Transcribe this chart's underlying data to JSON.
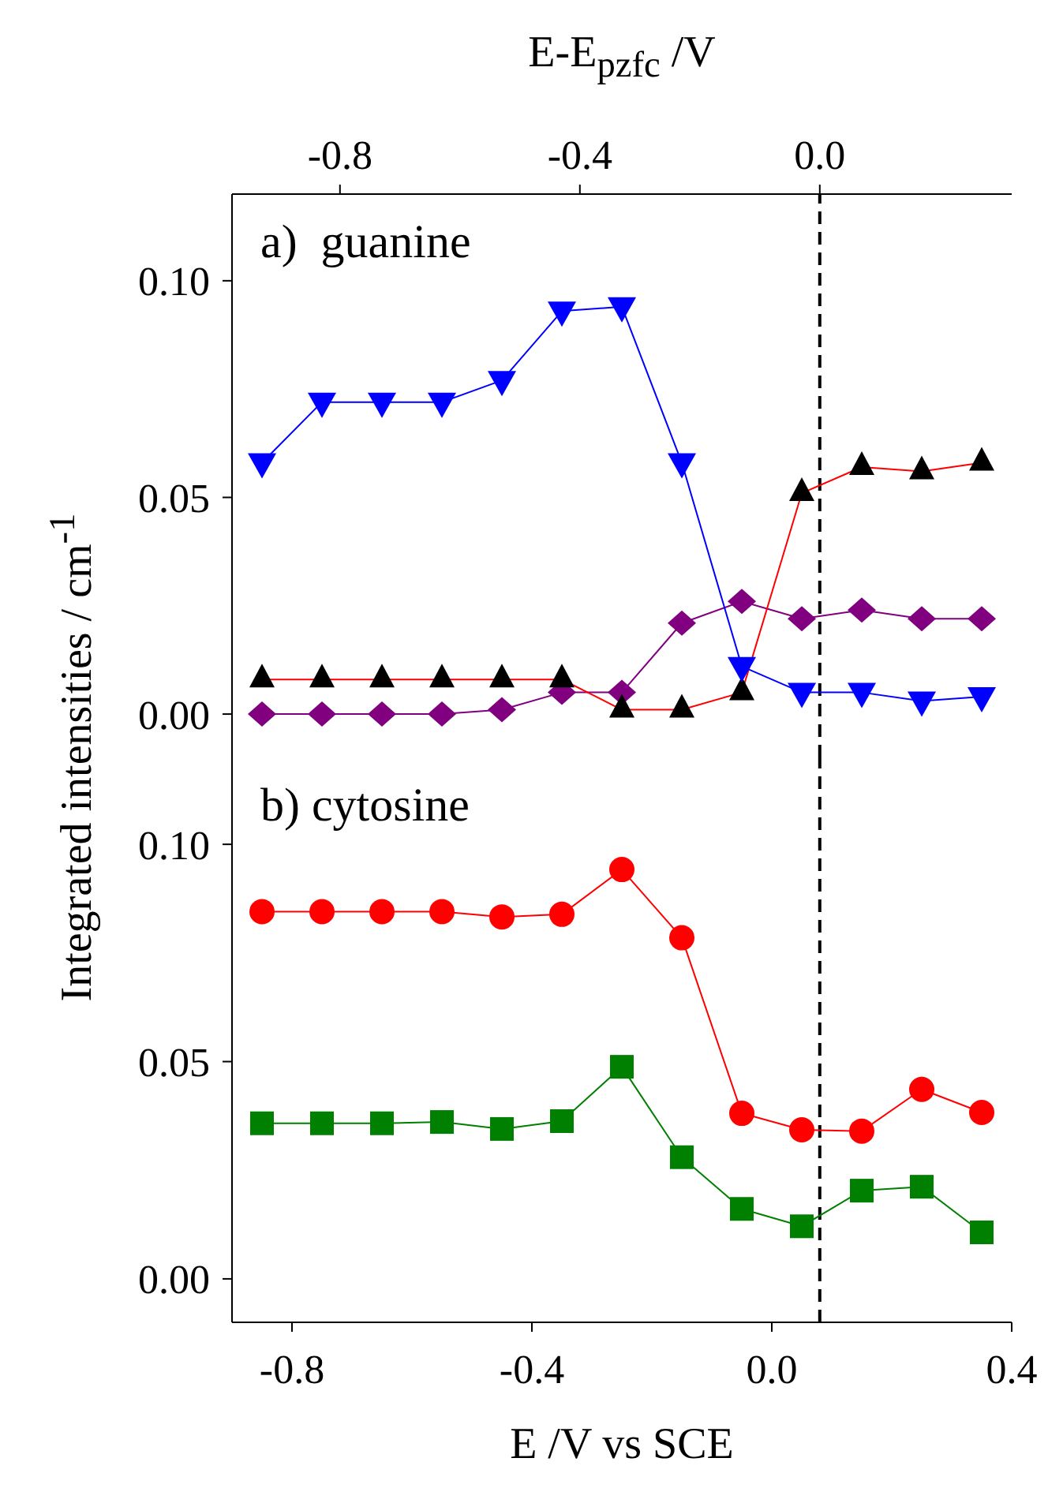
{
  "chart_data": [
    {
      "type": "line",
      "x": [
        -0.85,
        -0.75,
        -0.65,
        -0.55,
        -0.45,
        -0.35,
        -0.25,
        -0.15,
        -0.05,
        0.05,
        0.15,
        0.25,
        0.35
      ],
      "series": [
        {
          "color": "#800080",
          "marker": "diamond",
          "values": [
            0.0,
            0.0,
            0.0,
            0.0,
            0.001,
            0.005,
            0.005,
            0.021,
            0.026,
            0.022,
            0.024,
            0.022,
            0.022
          ]
        },
        {
          "color": "#ff0000",
          "colors": [
            "#000000",
            "#000000",
            "#000000",
            "#000000",
            "#000000",
            "#000000",
            "#000000",
            "#000000",
            "#000000",
            "#000000",
            "#000000",
            "#000000",
            "#000000"
          ],
          "marker": "triangle",
          "values": [
            0.008,
            0.008,
            0.008,
            0.008,
            0.008,
            0.008,
            0.001,
            0.001,
            0.005,
            0.051,
            0.057,
            0.056,
            0.058
          ]
        },
        {
          "color": "#0000ff",
          "marker": "triangle-down",
          "values": [
            0.058,
            0.072,
            0.072,
            0.072,
            0.077,
            0.093,
            0.094,
            0.058,
            0.011,
            0.005,
            0.005,
            0.003,
            0.004
          ]
        }
      ],
      "xlim": [
        -0.9,
        0.4
      ],
      "x2lim": [
        -0.98,
        0.32
      ],
      "x2ticks": [
        {
          "value": -0.8,
          "label": "-0.8"
        },
        {
          "value": -0.4,
          "label": "-0.4"
        },
        {
          "value": 0.0,
          "label": "0.0"
        }
      ],
      "x2label": "E-E$_{pzfc}$ /V",
      "ylim": [
        -0.01,
        0.12
      ],
      "yticks": [
        {
          "value": 0.0,
          "label": "0.00"
        },
        {
          "value": 0.05,
          "label": "0.05"
        },
        {
          "value": 0.1,
          "label": "0.10"
        }
      ],
      "ylabel": "Integrated intensities / cm$^{-1}$",
      "tick_labels": "y",
      "annotations": [
        "a)  guanine"
      ],
      "ref_lines": [
        {
          "axis": "x",
          "value": 0.08,
          "color": "#000000",
          "line_style": "dashed"
        }
      ]
    },
    {
      "type": "line",
      "x": [
        -0.85,
        -0.75,
        -0.65,
        -0.55,
        -0.45,
        -0.35,
        -0.25,
        -0.15,
        -0.05,
        0.05,
        0.15,
        0.25,
        0.35
      ],
      "series": [
        {
          "color": "#ff0000",
          "marker": "circle",
          "values": [
            0.0845,
            0.0845,
            0.0845,
            0.0845,
            0.0833,
            0.0839,
            0.0942,
            0.0785,
            0.0381,
            0.0343,
            0.034,
            0.0436,
            0.0383
          ]
        },
        {
          "color": "#008000",
          "marker": "square",
          "values": [
            0.0358,
            0.0358,
            0.0358,
            0.0361,
            0.0345,
            0.0363,
            0.0488,
            0.028,
            0.0161,
            0.0121,
            0.0203,
            0.0212,
            0.0107
          ]
        }
      ],
      "xlim": [
        -0.9,
        0.4
      ],
      "xticks": [
        {
          "value": -0.8,
          "label": "-0.8"
        },
        {
          "value": -0.4,
          "label": "-0.4"
        },
        {
          "value": 0.0,
          "label": "0.0"
        },
        {
          "value": 0.4,
          "label": "0.4"
        }
      ],
      "xlabel": "E /V vs SCE",
      "ylim": [
        -0.01,
        0.12
      ],
      "yticks": [
        {
          "value": 0.0,
          "label": "0.00"
        },
        {
          "value": 0.05,
          "label": "0.05"
        },
        {
          "value": 0.1,
          "label": "0.10"
        }
      ],
      "annotations": [
        "b) cytosine"
      ],
      "ref_lines": [
        {
          "axis": "x",
          "value": 0.08,
          "color": "#000000",
          "line_style": "dashed"
        }
      ]
    }
  ]
}
